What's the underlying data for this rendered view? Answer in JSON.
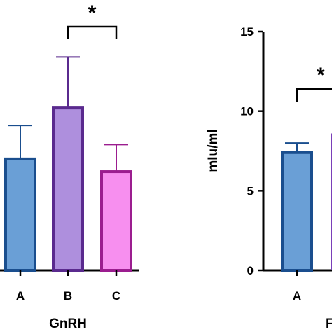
{
  "chart_data": [
    {
      "type": "bar",
      "xlabel": "GnRH",
      "categories": [
        "A",
        "B",
        "C"
      ],
      "values": [
        7.0,
        10.2,
        6.2
      ],
      "error_upper": [
        9.1,
        13.4,
        7.9
      ],
      "colors": {
        "fill": [
          "#6a9fd6",
          "#ae8fdd",
          "#f78fef"
        ],
        "edge": [
          "#1a4e8e",
          "#5a2a8e",
          "#9b1d8f"
        ]
      },
      "significance": {
        "between": [
          "B",
          "C"
        ],
        "label": "*"
      }
    },
    {
      "type": "bar",
      "xlabel": "F",
      "ylabel": "mIu/ml",
      "ylim": [
        0,
        15
      ],
      "yticks": [
        "0",
        "5",
        "10",
        "15"
      ],
      "categories": [
        "A"
      ],
      "values": [
        7.4
      ],
      "error_upper": [
        8.0
      ],
      "colors": {
        "fill": [
          "#6a9fd6"
        ],
        "edge": [
          "#1a4e8e"
        ]
      },
      "partial_next_bar": {
        "value": 8.6,
        "fill": "#7a3fb8"
      },
      "significance": {
        "between": [
          "A",
          "B"
        ],
        "label": "*"
      }
    }
  ]
}
